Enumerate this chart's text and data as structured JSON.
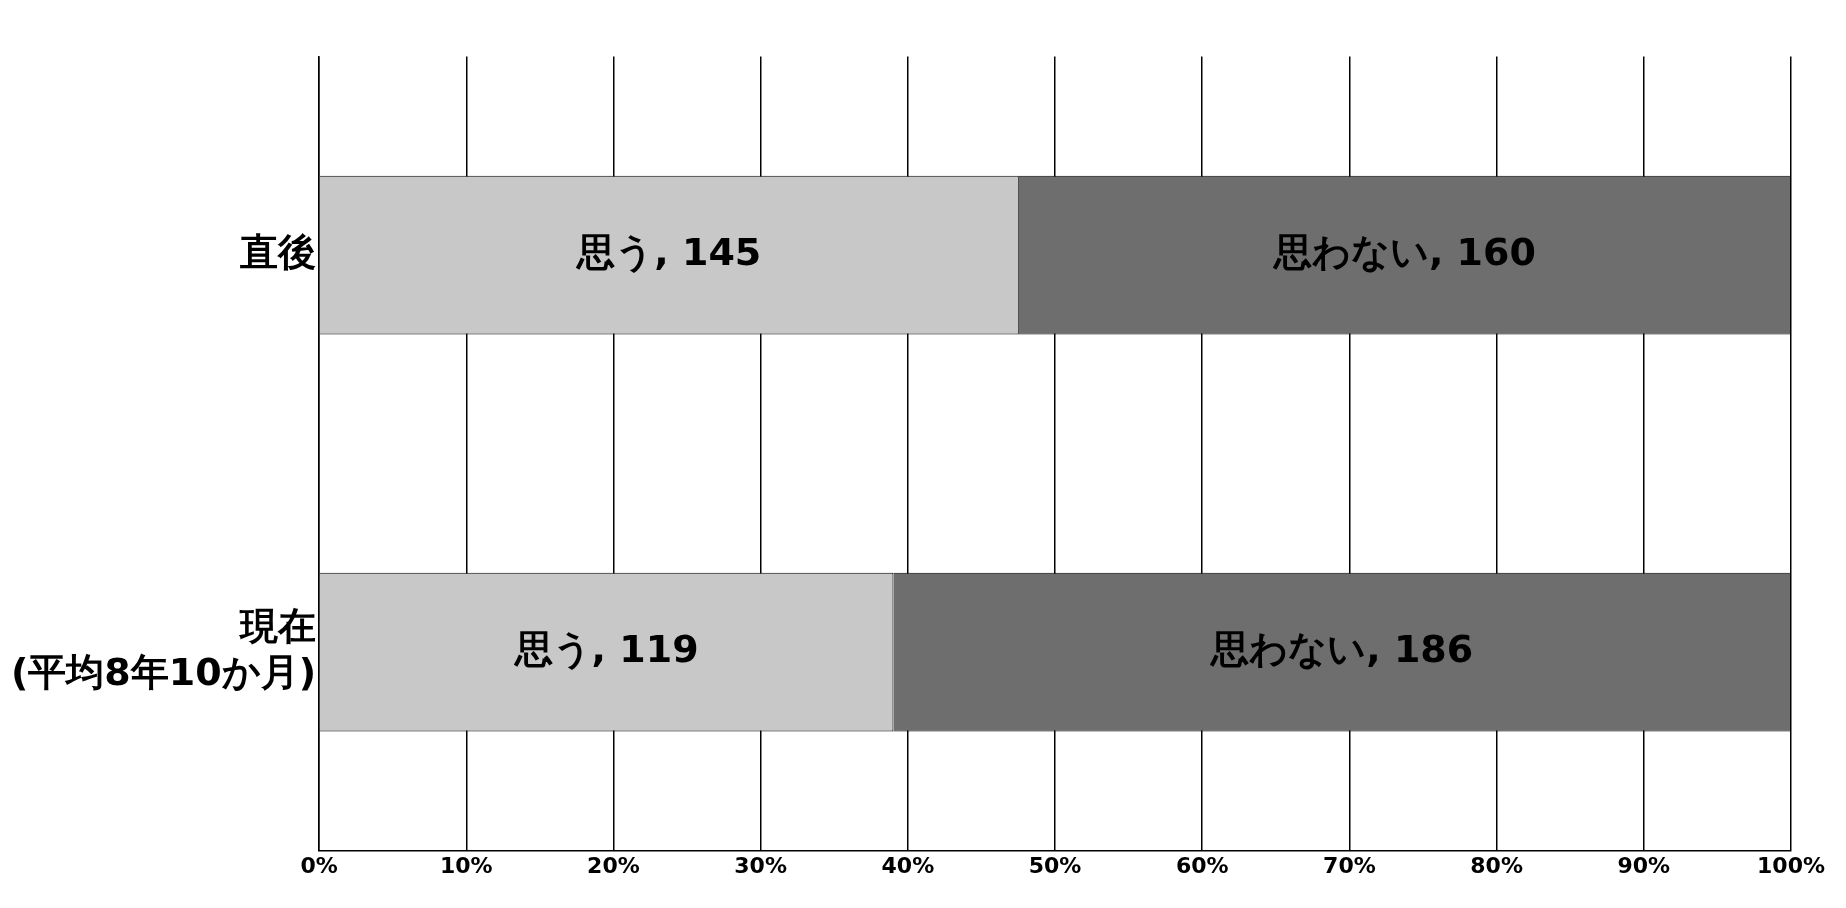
{
  "chart_data": {
    "type": "bar",
    "orientation": "horizontal",
    "stacked": true,
    "categories": [
      "直後",
      "現在\n(平均8年10か月)"
    ],
    "series": [
      {
        "color": "#c8c8c8",
        "values": [
          47.54,
          39.02
        ]
      },
      {
        "color": "#6e6e6e",
        "values": [
          52.46,
          60.98
        ]
      }
    ],
    "annotations": [
      "思う, 145",
      "思わない, 160",
      "思う, 119",
      "思わない, 186"
    ],
    "xlim": [
      0,
      100
    ],
    "xticks": [
      {
        "value": 0,
        "label": "0%"
      },
      {
        "value": 10,
        "label": "10%"
      },
      {
        "value": 20,
        "label": "20%"
      },
      {
        "value": 30,
        "label": "30%"
      },
      {
        "value": 40,
        "label": "40%"
      },
      {
        "value": 50,
        "label": "50%"
      },
      {
        "value": 60,
        "label": "60%"
      },
      {
        "value": 70,
        "label": "70%"
      },
      {
        "value": 80,
        "label": "80%"
      },
      {
        "value": 90,
        "label": "90%"
      },
      {
        "value": 100,
        "label": "100%"
      }
    ],
    "grid": "x",
    "legend": false
  }
}
